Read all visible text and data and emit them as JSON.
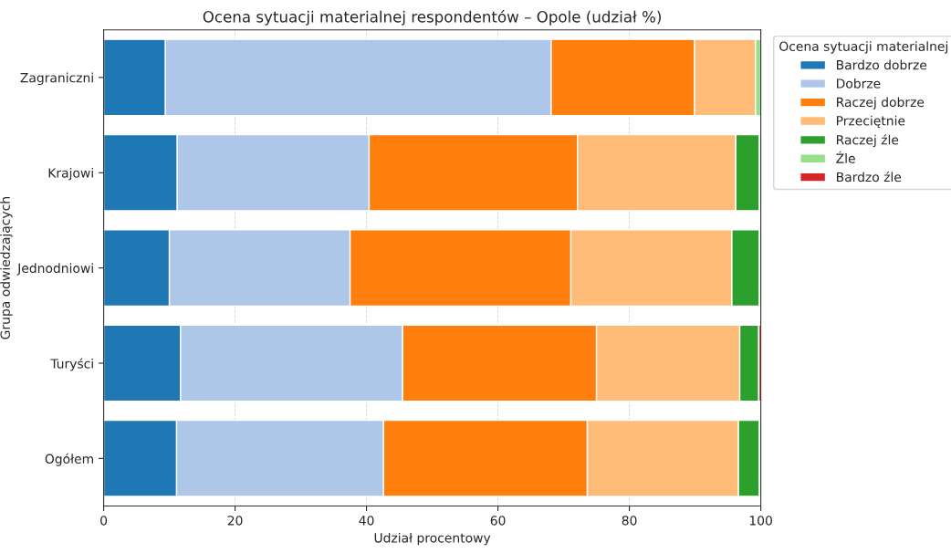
{
  "chart_data": {
    "type": "bar",
    "orientation": "horizontal",
    "stacked": true,
    "title": "Ocena sytuacji materialnej respondentów – Opole (udział %)",
    "xlabel": "Udział procentowy",
    "ylabel": "Grupa odwiedzających",
    "legend_title": "Ocena sytuacji materialnej",
    "legend": "top right",
    "grid": "x",
    "categories": [
      "Zagraniczni",
      "Krajowi",
      "Jednodniowi",
      "Turyści",
      "Ogółem"
    ],
    "xlim": [
      0,
      100
    ],
    "xticks": [
      0,
      20,
      40,
      60,
      80,
      100
    ],
    "series": [
      {
        "name": "Bardzo dobrze",
        "color": "#1f77b4",
        "values": [
          9.4,
          11.2,
          10.0,
          11.7,
          11.1
        ]
      },
      {
        "name": "Dobrze",
        "color": "#aec7e8",
        "values": [
          58.7,
          29.2,
          27.5,
          33.8,
          31.5
        ]
      },
      {
        "name": "Raczej dobrze",
        "color": "#ff7f0e",
        "values": [
          21.8,
          31.7,
          33.6,
          29.5,
          31.0
        ]
      },
      {
        "name": "Przeciętnie",
        "color": "#ffbb78",
        "values": [
          9.3,
          24.1,
          24.5,
          21.8,
          23.0
        ]
      },
      {
        "name": "Raczej źle",
        "color": "#2ca02c",
        "values": [
          0,
          3.6,
          4.2,
          2.9,
          3.2
        ]
      },
      {
        "name": "Źle",
        "color": "#98df8a",
        "values": [
          0.8,
          0,
          0,
          0,
          0
        ]
      },
      {
        "name": "Bardzo źle",
        "color": "#d62728",
        "values": [
          0,
          0.2,
          0.2,
          0.3,
          0.2
        ]
      }
    ]
  }
}
